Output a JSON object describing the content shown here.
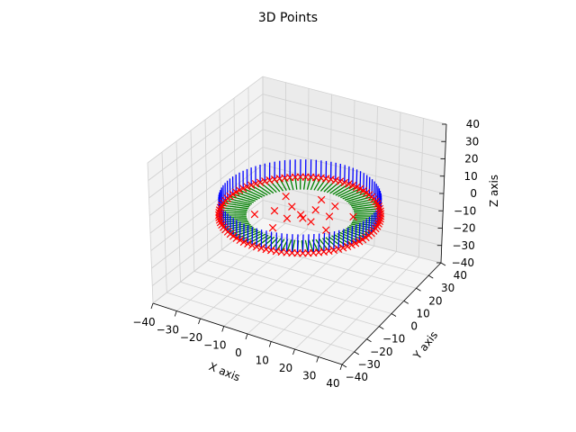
{
  "chart_data": {
    "type": "scatter",
    "projection": "3d",
    "title": "3D Points",
    "xlabel": "X axis",
    "ylabel": "Y axis",
    "zlabel": "Z axis",
    "xlim": [
      -40,
      40
    ],
    "ylim": [
      -40,
      40
    ],
    "zlim": [
      -40,
      40
    ],
    "xticks": [
      "−40",
      "−30",
      "−20",
      "−10",
      "0",
      "10",
      "20",
      "30",
      "40"
    ],
    "yticks": [
      "−40",
      "−30",
      "−20",
      "−10",
      "0",
      "10",
      "20",
      "30",
      "40"
    ],
    "zticks": [
      "−40",
      "−30",
      "−20",
      "−10",
      "0",
      "10",
      "20",
      "30",
      "40"
    ],
    "grid": true,
    "colors": {
      "ring_marker": "#ff0000",
      "inner_marker": "#ff0000",
      "vertical_lines": "#0000ff",
      "radial_lines": "#008000",
      "pane_left": "#f2f2f2",
      "pane_right": "#ebebeb",
      "pane_floor": "#f5f5f5",
      "grid": "#d0d0d0"
    },
    "ring": {
      "radius": 30,
      "z": 0,
      "marker": "x",
      "count": 96,
      "vertical_line_length": 10,
      "radial_line_radius": 20
    },
    "inner_points": [
      {
        "x": -15,
        "y": -8,
        "z": 0
      },
      {
        "x": -10,
        "y": -2,
        "z": 0
      },
      {
        "x": -6,
        "y": 4,
        "z": 0
      },
      {
        "x": -3,
        "y": -5,
        "z": 0
      },
      {
        "x": 0,
        "y": 0,
        "z": 0
      },
      {
        "x": 3,
        "y": 6,
        "z": 0
      },
      {
        "x": 6,
        "y": -3,
        "z": 0
      },
      {
        "x": 10,
        "y": 4,
        "z": 0
      },
      {
        "x": 8,
        "y": 12,
        "z": 0
      },
      {
        "x": -12,
        "y": 10,
        "z": 0
      },
      {
        "x": 14,
        "y": -6,
        "z": 0
      },
      {
        "x": 1,
        "y": 14,
        "z": 0
      },
      {
        "x": 18,
        "y": 8,
        "z": 0
      },
      {
        "x": -4,
        "y": -14,
        "z": 0
      },
      {
        "x": 2,
        "y": -2,
        "z": 0
      }
    ]
  }
}
